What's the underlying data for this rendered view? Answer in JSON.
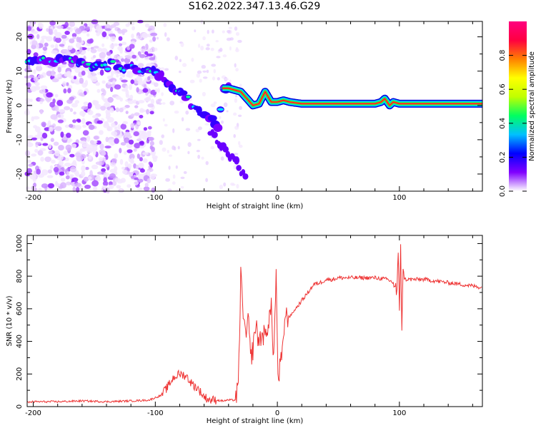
{
  "title": "S162.2022.347.13.46.G29",
  "chart_data": [
    {
      "type": "heatmap",
      "xlabel": "Height of straight line (km)",
      "ylabel": "Frequency (Hz)",
      "xlim": [
        -205,
        168
      ],
      "ylim": [
        -25,
        24.5
      ],
      "x_ticks": [
        -200,
        -100,
        0,
        100
      ],
      "y_ticks": [
        -20,
        -10,
        0,
        10,
        20
      ],
      "colorbar": {
        "label": "Normalized spectral amplitude",
        "range": [
          0,
          1
        ],
        "ticks": [
          "0.0",
          "0.2",
          "0.4",
          "0.6",
          "0.8"
        ],
        "colormap": [
          "#ffffff",
          "#8000ff",
          "#0000ff",
          "#00c0ff",
          "#00ff60",
          "#c0ff00",
          "#ffff00",
          "#ff8000",
          "#ff0040",
          "#ff0080"
        ]
      },
      "grid": false,
      "ridge": {
        "x": [
          -205,
          -190,
          -170,
          -150,
          -130,
          -115,
          -105,
          -95,
          -85,
          -75,
          -65,
          -55,
          -48,
          -45,
          -40,
          -30,
          -25,
          -20,
          -15,
          -10,
          -5,
          0,
          5,
          10,
          20,
          40,
          60,
          80,
          85,
          88,
          90,
          92,
          95,
          100,
          110,
          130,
          150,
          168
        ],
        "y": [
          13.5,
          13.5,
          12.5,
          12,
          11.5,
          11,
          10.5,
          9,
          5,
          2,
          -1,
          -3,
          -6,
          5,
          5,
          4,
          2,
          0,
          0.5,
          4,
          1,
          1,
          1.5,
          1,
          0.5,
          0.5,
          0.5,
          0.5,
          1,
          2,
          1,
          0,
          1,
          0.5,
          0.5,
          0.5,
          0.5,
          0.5
        ]
      },
      "branch": {
        "x": [
          -55,
          -50,
          -45,
          -40,
          -35,
          -30,
          -25
        ],
        "y": [
          -8,
          -10,
          -12,
          -14,
          -16,
          -19,
          -22
        ]
      }
    },
    {
      "type": "line",
      "xlabel": "Height of straight line (km)",
      "ylabel": "SNR (10 * v/v)",
      "xlim": [
        -205,
        168
      ],
      "ylim": [
        0,
        1050
      ],
      "x_ticks": [
        -200,
        -100,
        0,
        100
      ],
      "y_ticks": [
        0,
        200,
        400,
        600,
        800,
        1000
      ],
      "color": "#ee3333",
      "grid": false,
      "x": [
        -205,
        -200,
        -180,
        -160,
        -140,
        -120,
        -105,
        -95,
        -90,
        -85,
        -80,
        -75,
        -70,
        -65,
        -60,
        -55,
        -50,
        -45,
        -40,
        -35,
        -32,
        -30,
        -28,
        -26,
        -24,
        -22,
        -20,
        -18,
        -15,
        -12,
        -10,
        -8,
        -5,
        -3,
        -1,
        0,
        1,
        2,
        4,
        6,
        10,
        15,
        20,
        25,
        30,
        35,
        40,
        45,
        50,
        60,
        70,
        80,
        90,
        95,
        98,
        99,
        100,
        101,
        102,
        103,
        105,
        110,
        120,
        130,
        140,
        150,
        160,
        168
      ],
      "y": [
        25,
        30,
        30,
        35,
        30,
        35,
        40,
        70,
        120,
        180,
        200,
        190,
        140,
        110,
        60,
        40,
        40,
        35,
        40,
        40,
        100,
        800,
        600,
        400,
        550,
        300,
        350,
        500,
        400,
        450,
        420,
        500,
        600,
        300,
        800,
        400,
        100,
        250,
        300,
        550,
        550,
        600,
        650,
        700,
        750,
        760,
        780,
        780,
        790,
        790,
        790,
        790,
        780,
        760,
        700,
        900,
        600,
        1000,
        500,
        800,
        780,
        780,
        780,
        770,
        760,
        750,
        740,
        730
      ]
    }
  ]
}
